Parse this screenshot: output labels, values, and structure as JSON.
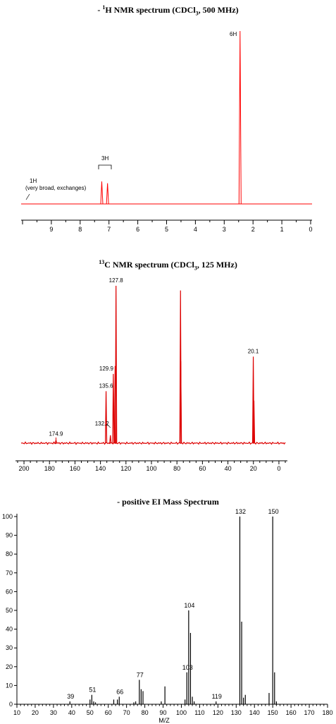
{
  "hnmr": {
    "title_prefix": "- ",
    "title_sup": "1",
    "title_main": "H NMR spectrum (CDCl",
    "title_sub": "3",
    "title_end": ", 500 MHz)",
    "annotations": {
      "six_h": "6H",
      "three_h": "3H",
      "one_h": "1H",
      "broad": "(very broad, exchanges)"
    },
    "chart_data": {
      "type": "line",
      "xlabel": "",
      "ylabel": "",
      "xlim": [
        10,
        0
      ],
      "ticks": [
        "9",
        "8",
        "7",
        "6",
        "5",
        "4",
        "3",
        "2",
        "1",
        "0"
      ],
      "peaks": [
        {
          "ppm": 7.25,
          "height": 0.13
        },
        {
          "ppm": 7.05,
          "height": 0.12
        },
        {
          "ppm": 2.45,
          "height": 1.0
        }
      ],
      "color": "#ff0000"
    }
  },
  "cnmr": {
    "title_sup": "13",
    "title_main": "C NMR spectrum (CDCl",
    "title_sub": "3",
    "title_end": ", 125 MHz)",
    "chart_data": {
      "type": "line",
      "xlabel": "",
      "ylabel": "",
      "xlim": [
        205,
        -5
      ],
      "ticks": [
        "200",
        "180",
        "160",
        "140",
        "120",
        "100",
        "80",
        "60",
        "40",
        "20",
        "0"
      ],
      "peaks": [
        {
          "ppm": 174.9,
          "height": 0.02,
          "label": "174.9"
        },
        {
          "ppm": 135.6,
          "height": 0.33,
          "label": "135.6"
        },
        {
          "ppm": 132.2,
          "height": 0.05,
          "label": "132.2"
        },
        {
          "ppm": 129.9,
          "height": 0.44,
          "label": "129.9"
        },
        {
          "ppm": 128.5,
          "height": 0.49
        },
        {
          "ppm": 127.8,
          "height": 1.0,
          "label": "127.8"
        },
        {
          "ppm": 77.2,
          "height": 0.97
        },
        {
          "ppm": 77.0,
          "height": 0.52
        },
        {
          "ppm": 20.1,
          "height": 0.55,
          "label": "20.1"
        },
        {
          "ppm": 19.6,
          "height": 0.27
        }
      ],
      "color": "#dd0000"
    }
  },
  "ms": {
    "title": "- positive EI Mass Spectrum",
    "chart_data": {
      "type": "bar",
      "xlabel": "M/Z",
      "ylabel": "",
      "xlim": [
        10,
        180
      ],
      "ylim": [
        0,
        100
      ],
      "x_ticks": [
        "10",
        "20",
        "30",
        "40",
        "50",
        "60",
        "70",
        "80",
        "90",
        "100",
        "110",
        "120",
        "130",
        "140",
        "150",
        "160",
        "170",
        "180"
      ],
      "y_ticks": [
        "0",
        "10",
        "20",
        "30",
        "40",
        "50",
        "60",
        "70",
        "80",
        "90",
        "100"
      ],
      "peaks": [
        {
          "mz": 39,
          "intensity": 1.5,
          "label": "39"
        },
        {
          "mz": 50,
          "intensity": 2.5
        },
        {
          "mz": 51,
          "intensity": 5,
          "label": "51"
        },
        {
          "mz": 52,
          "intensity": 1.5
        },
        {
          "mz": 53,
          "intensity": 1
        },
        {
          "mz": 63,
          "intensity": 2.5
        },
        {
          "mz": 65,
          "intensity": 2.5
        },
        {
          "mz": 66,
          "intensity": 4,
          "label": "66"
        },
        {
          "mz": 74,
          "intensity": 1
        },
        {
          "mz": 75,
          "intensity": 1.5
        },
        {
          "mz": 77,
          "intensity": 13,
          "label": "77"
        },
        {
          "mz": 78,
          "intensity": 8
        },
        {
          "mz": 79,
          "intensity": 7
        },
        {
          "mz": 89,
          "intensity": 1.5
        },
        {
          "mz": 91,
          "intensity": 9.5
        },
        {
          "mz": 102,
          "intensity": 2.5
        },
        {
          "mz": 103,
          "intensity": 17,
          "label": "103"
        },
        {
          "mz": 104,
          "intensity": 50,
          "label": "104"
        },
        {
          "mz": 105,
          "intensity": 38
        },
        {
          "mz": 106,
          "intensity": 4
        },
        {
          "mz": 107,
          "intensity": 1.5
        },
        {
          "mz": 119,
          "intensity": 1.5,
          "label": "119"
        },
        {
          "mz": 132,
          "intensity": 100,
          "label": "132"
        },
        {
          "mz": 133,
          "intensity": 44
        },
        {
          "mz": 134,
          "intensity": 3.5
        },
        {
          "mz": 135,
          "intensity": 5
        },
        {
          "mz": 148,
          "intensity": 6
        },
        {
          "mz": 150,
          "intensity": 100,
          "label": "150"
        },
        {
          "mz": 151,
          "intensity": 17
        },
        {
          "mz": 152,
          "intensity": 1.5
        }
      ]
    }
  }
}
